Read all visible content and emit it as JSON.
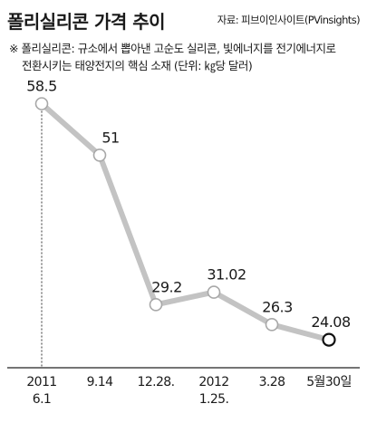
{
  "header": {
    "title": "폴리실리콘 가격 추이",
    "source": "자료: 피브이인사이트(PVinsights)"
  },
  "note": {
    "line1": "※ 폴리실리콘: 규소에서 뽑아낸 고순도 실리콘, 빛에너지를 전기에너지로",
    "line2": "전환시키는 태양전지의 핵심 소재 (단위: ㎏당 달러)"
  },
  "colors": {
    "line": "#c3c3c3",
    "marker_fill": "#ffffff",
    "marker_stroke": "#a8a8a8",
    "last_marker_stroke": "#111111",
    "axis": "#222222"
  },
  "chart_data": {
    "type": "line",
    "categories": [
      [
        "2011",
        "6.1"
      ],
      [
        "9.14"
      ],
      [
        "12.28."
      ],
      [
        "2012",
        "1.25."
      ],
      [
        "3.28"
      ],
      [
        "5월30일"
      ]
    ],
    "values": [
      58.5,
      51,
      29.2,
      31.02,
      26.3,
      24.08
    ],
    "value_labels": [
      "58.5",
      "51",
      "29.2",
      "31.02",
      "26.3",
      "24.08"
    ],
    "ylim": [
      20,
      62
    ],
    "grid": false,
    "baseline_divider_after_first": true
  }
}
